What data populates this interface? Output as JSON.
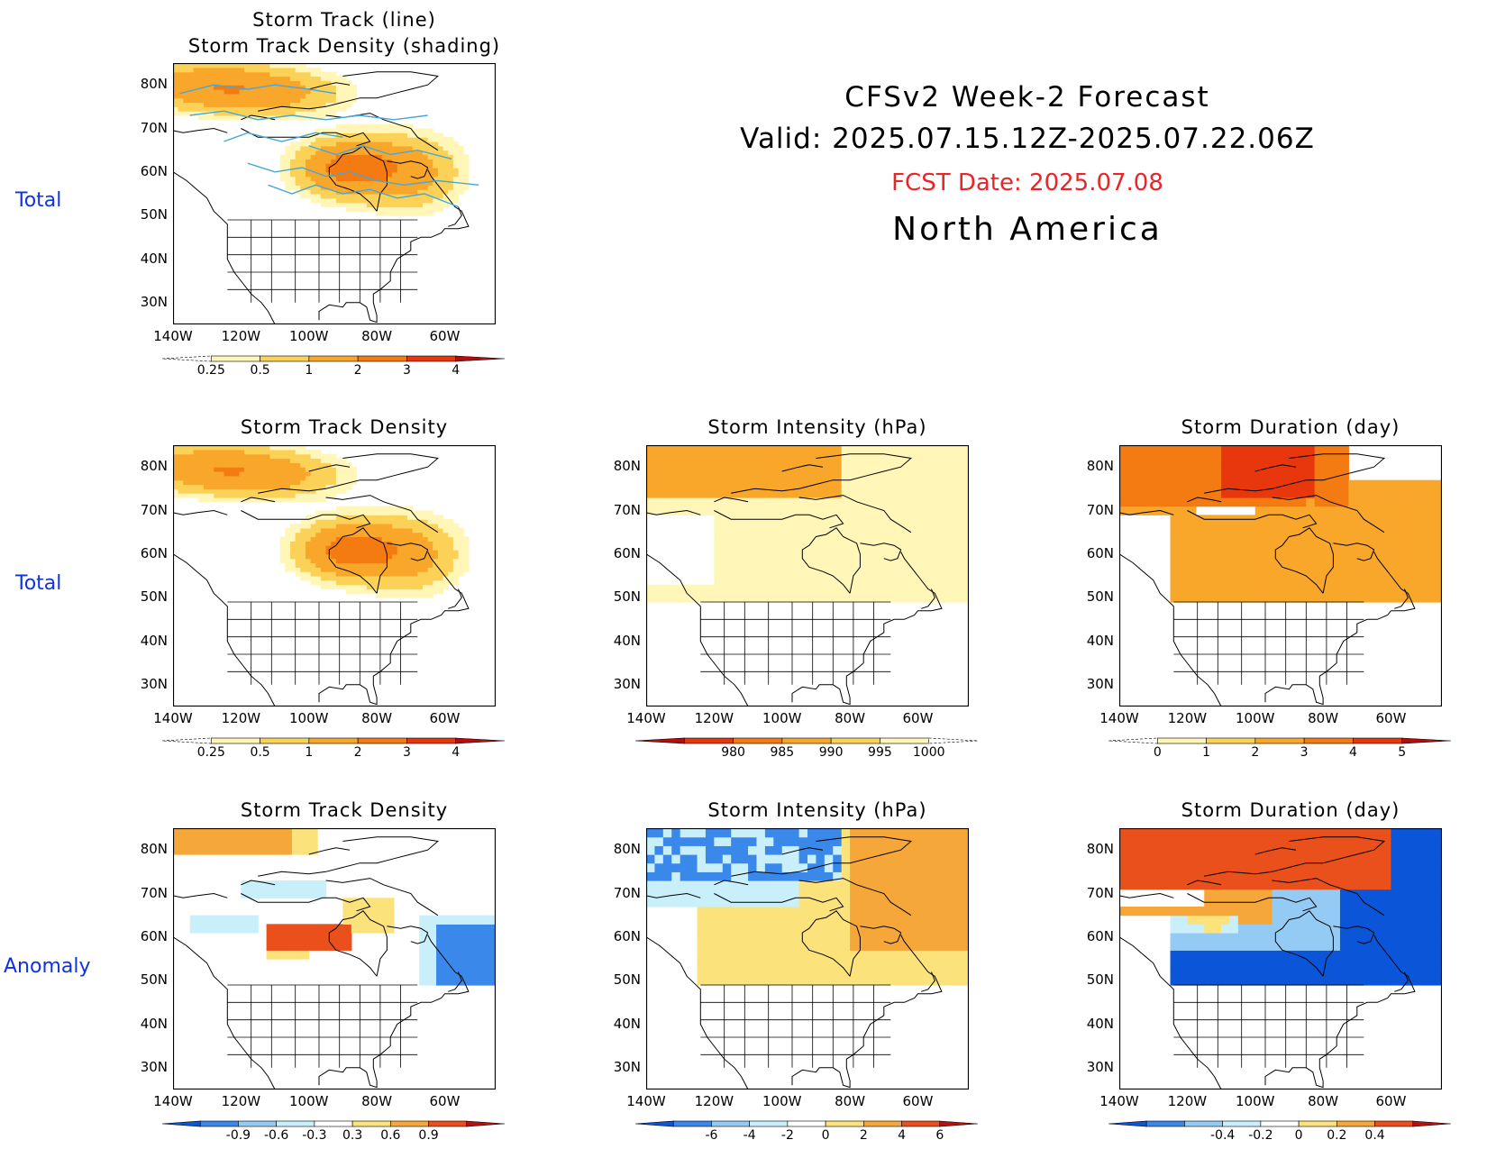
{
  "header": {
    "title": "CFSv2 Week-2 Forecast",
    "valid": "Valid: 2025.07.15.12Z-2025.07.22.06Z",
    "fcst_date": "FCST Date: 2025.07.08",
    "region": "North America"
  },
  "row_labels": [
    "Total",
    "Total",
    "Anomaly"
  ],
  "axes": {
    "lat_labels": [
      "80N",
      "70N",
      "60N",
      "50N",
      "40N",
      "30N"
    ],
    "lon_labels": [
      "140W",
      "120W",
      "100W",
      "80W",
      "60W"
    ]
  },
  "colors": {
    "positive": [
      "#fff6b8",
      "#fbd257",
      "#f9a72a",
      "#f47a12",
      "#e8370d",
      "#b40d0d"
    ],
    "anomaly_pos": [
      "#fbe27a",
      "#f6a73a",
      "#e9501c",
      "#b81010"
    ],
    "anomaly_neg": [
      "#0b55d8",
      "#3a88ea",
      "#94cbf4",
      "#c9f0fa"
    ],
    "track_line": "#47a8d8",
    "row_label": "#1133dd",
    "fcst_date": "#e8262a"
  },
  "panels": [
    {
      "id": "p1",
      "title_lines": [
        "Storm Track (line)",
        "Storm Track Density (shading)"
      ],
      "type": "density",
      "colorbar": {
        "labels": [
          "0.25",
          "0.5",
          "1",
          "2",
          "3",
          "4"
        ],
        "scheme": "positive"
      }
    },
    {
      "id": "p2",
      "title_lines": [
        "Storm Track Density"
      ],
      "type": "density",
      "colorbar": {
        "labels": [
          "0.25",
          "0.5",
          "1",
          "2",
          "3",
          "4"
        ],
        "scheme": "positive"
      }
    },
    {
      "id": "p3",
      "title_lines": [
        "Storm Intensity (hPa)"
      ],
      "type": "intensity",
      "colorbar": {
        "labels": [
          "980",
          "985",
          "990",
          "995",
          "1000"
        ],
        "scheme": "reversed"
      }
    },
    {
      "id": "p4",
      "title_lines": [
        "Storm Duration (day)"
      ],
      "type": "duration",
      "colorbar": {
        "labels": [
          "0",
          "1",
          "2",
          "3",
          "4",
          "5"
        ],
        "scheme": "positive"
      }
    },
    {
      "id": "p5",
      "title_lines": [
        "Storm Track Density"
      ],
      "type": "anom_density",
      "colorbar": {
        "labels": [
          "-0.9",
          "-0.6",
          "-0.3",
          "0.3",
          "0.6",
          "0.9"
        ],
        "scheme": "anomaly"
      }
    },
    {
      "id": "p6",
      "title_lines": [
        "Storm Intensity (hPa)"
      ],
      "type": "anom_intensity",
      "colorbar": {
        "labels": [
          "-6",
          "-4",
          "-2",
          "0",
          "2",
          "4",
          "6"
        ],
        "scheme": "anomaly"
      }
    },
    {
      "id": "p7",
      "title_lines": [
        "Storm Duration (day)"
      ],
      "type": "anom_duration",
      "colorbar": {
        "labels": [
          "-0.4",
          "-0.2",
          "0",
          "0.2",
          "0.4"
        ],
        "scheme": "anomaly"
      }
    }
  ]
}
